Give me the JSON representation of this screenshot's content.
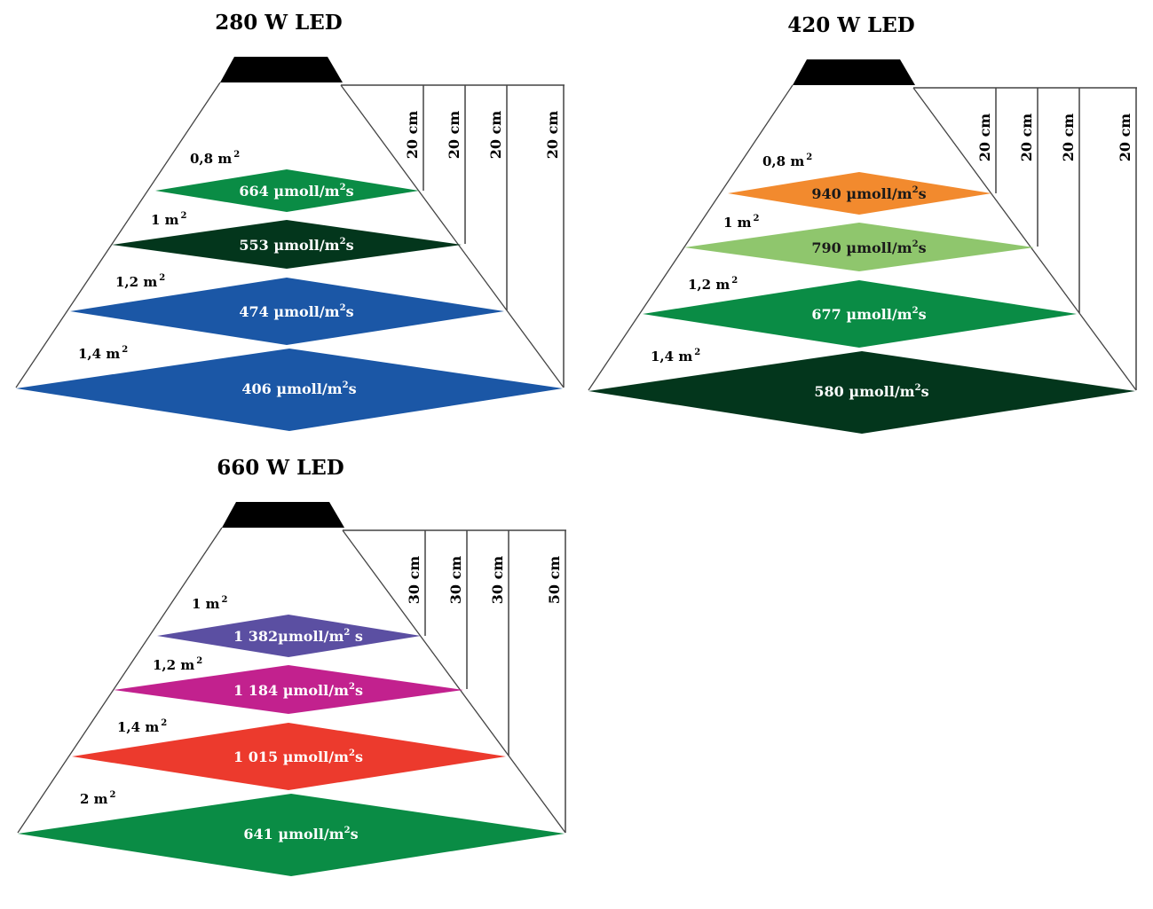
{
  "diagrams": [
    {
      "title": "280 W LED",
      "distances": [
        "20 cm",
        "20 cm",
        "20 cm",
        "20 cm"
      ],
      "levels": [
        {
          "area": "0,8 m",
          "area_sup": "2",
          "ppfd": "664 µmoll/m",
          "ppfd_sup": "2",
          "ppfd_end": "s",
          "color": "#0a8c45",
          "text_color": "#ffffff"
        },
        {
          "area": "1 m",
          "area_sup": "2",
          "ppfd": "553 µmoll/m",
          "ppfd_sup": "2",
          "ppfd_end": "s",
          "color": "#03361c",
          "text_color": "#ffffff"
        },
        {
          "area": "1,2 m",
          "area_sup": "2",
          "ppfd": "474 µmoll/m",
          "ppfd_sup": "2",
          "ppfd_end": "s",
          "color": "#1b57a6",
          "text_color": "#ffffff"
        },
        {
          "area": "1,4 m",
          "area_sup": "2",
          "ppfd": "406 µmoll/m",
          "ppfd_sup": "2",
          "ppfd_end": "s",
          "color": "#1b57a6",
          "text_color": "#ffffff"
        }
      ]
    },
    {
      "title": "420 W LED",
      "distances": [
        "20 cm",
        "20 cm",
        "20 cm",
        "20 cm"
      ],
      "levels": [
        {
          "area": "0,8 m",
          "area_sup": "2",
          "ppfd": "940 µmoll/m",
          "ppfd_sup": "2",
          "ppfd_end": "s",
          "color": "#f28a2e",
          "text_color": "#1a1a1a"
        },
        {
          "area": "1 m",
          "area_sup": "2",
          "ppfd": "790 µmoll/m",
          "ppfd_sup": "2",
          "ppfd_end": "s",
          "color": "#8fc66d",
          "text_color": "#1a1a1a"
        },
        {
          "area": "1,2 m",
          "area_sup": "2",
          "ppfd": "677 µmoll/m",
          "ppfd_sup": "2",
          "ppfd_end": "s",
          "color": "#0a8c45",
          "text_color": "#ffffff"
        },
        {
          "area": "1,4 m",
          "area_sup": "2",
          "ppfd": "580 µmoll/m",
          "ppfd_sup": "2",
          "ppfd_end": "s",
          "color": "#03361c",
          "text_color": "#ffffff"
        }
      ]
    },
    {
      "title": "660 W LED",
      "distances": [
        "30 cm",
        "30 cm",
        "30 cm",
        "50 cm"
      ],
      "levels": [
        {
          "area": "1 m",
          "area_sup": "2",
          "ppfd": "1 382µmoll/m",
          "ppfd_sup": "2",
          "ppfd_end": " s",
          "color": "#5b4fa2",
          "text_color": "#ffffff"
        },
        {
          "area": "1,2 m",
          "area_sup": "2",
          "ppfd": "1 184 µmoll/m",
          "ppfd_sup": "2",
          "ppfd_end": "s",
          "color": "#c2218e",
          "text_color": "#ffffff"
        },
        {
          "area": "1,4 m",
          "area_sup": "2",
          "ppfd": "1 015 µmoll/m",
          "ppfd_sup": "2",
          "ppfd_end": "s",
          "color": "#ec3a2d",
          "text_color": "#ffffff"
        },
        {
          "area": "2 m",
          "area_sup": "2",
          "ppfd": "641 µmoll/m",
          "ppfd_sup": "2",
          "ppfd_end": "s",
          "color": "#0a8c45",
          "text_color": "#ffffff"
        }
      ]
    }
  ]
}
